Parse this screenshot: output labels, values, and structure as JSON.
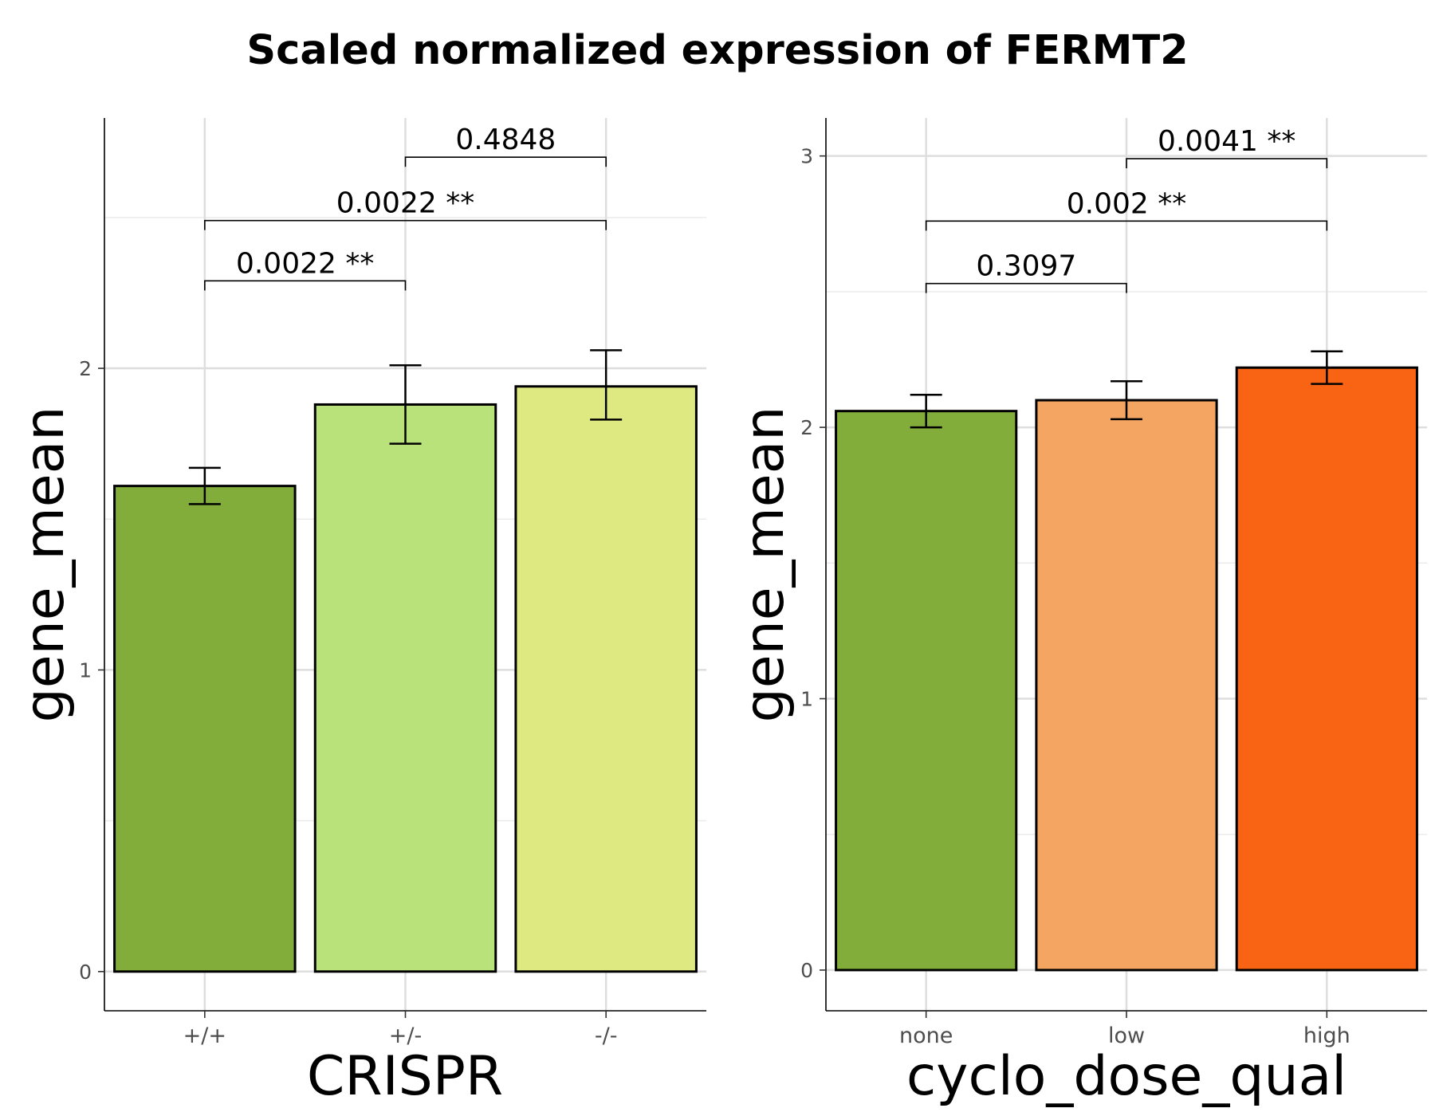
{
  "title": "Scaled normalized expression of FERMT2",
  "chart_data": [
    {
      "type": "bar",
      "xlabel": "CRISPR",
      "ylabel": "gene_mean",
      "categories": [
        "+/+",
        "+/-",
        "-/-"
      ],
      "values": [
        1.61,
        1.88,
        1.94
      ],
      "error_bars": [
        [
          1.55,
          1.67
        ],
        [
          1.75,
          2.01
        ],
        [
          1.83,
          2.06
        ]
      ],
      "colors": [
        "#82AD3B",
        "#B9E27A",
        "#DFE982"
      ],
      "ylim": [
        -0.13,
        2.83
      ],
      "yticks": [
        0,
        1,
        2
      ],
      "comparisons": [
        {
          "from": 0,
          "to": 1,
          "label": "0.0022 **",
          "y": 2.29
        },
        {
          "from": 0,
          "to": 2,
          "label": "0.0022 **",
          "y": 2.49
        },
        {
          "from": 1,
          "to": 2,
          "label": "0.4848",
          "y": 2.7
        }
      ],
      "grid": true
    },
    {
      "type": "bar",
      "xlabel": "cyclo_dose_qual",
      "ylabel": "gene_mean",
      "categories": [
        "none",
        "low",
        "high"
      ],
      "values": [
        2.06,
        2.1,
        2.22
      ],
      "error_bars": [
        [
          2.0,
          2.12
        ],
        [
          2.03,
          2.17
        ],
        [
          2.16,
          2.28
        ]
      ],
      "colors": [
        "#82AD3B",
        "#F5A562",
        "#F86414"
      ],
      "ylim": [
        -0.15,
        3.14
      ],
      "yticks": [
        0,
        1,
        2,
        3
      ],
      "comparisons": [
        {
          "from": 0,
          "to": 1,
          "label": "0.3097",
          "y": 2.53
        },
        {
          "from": 0,
          "to": 2,
          "label": "0.002 **",
          "y": 2.76
        },
        {
          "from": 1,
          "to": 2,
          "label": "0.0041 **",
          "y": 2.99
        }
      ],
      "grid": true
    }
  ]
}
